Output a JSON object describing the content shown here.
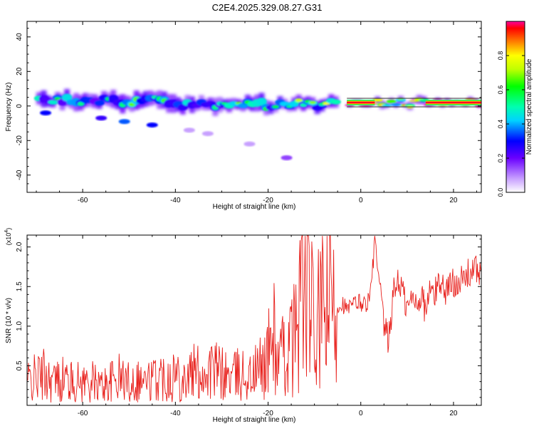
{
  "title": "C2E4.2025.329.08.27.G31",
  "chart_data": [
    {
      "type": "heatmap",
      "xlabel": "Height of straight line (km)",
      "ylabel": "Frequency (Hz)",
      "xlim": [
        -72,
        26
      ],
      "ylim": [
        -50,
        49
      ],
      "xticks": [
        -60,
        -40,
        -20,
        0,
        20
      ],
      "yticks": [
        -40,
        -20,
        0,
        20,
        40
      ],
      "colorbar": {
        "label": "Normalized spectral amplitude",
        "range": [
          0.0,
          1.0
        ],
        "ticks": [
          0.0,
          0.2,
          0.4,
          0.6,
          0.8
        ],
        "tick_labels": [
          "0.0",
          "0.2",
          "0.4",
          "0.6",
          "0.8"
        ]
      },
      "band_segments": [
        {
          "x_start": -70,
          "x_end": -62,
          "center_hz": 4,
          "width_hz": 8,
          "amplitude": 0.35
        },
        {
          "x_start": -62,
          "x_end": -40,
          "center_hz": 3,
          "width_hz": 9,
          "amplitude": 0.3
        },
        {
          "x_start": -40,
          "x_end": -20,
          "center_hz": 1,
          "width_hz": 8,
          "amplitude": 0.35
        },
        {
          "x_start": -20,
          "x_end": -5,
          "center_hz": 1,
          "width_hz": 6,
          "amplitude": 0.4
        },
        {
          "x_start": -3,
          "x_end": 3,
          "center_hz": 2,
          "width_hz": 2,
          "amplitude": 0.95
        },
        {
          "x_start": 3,
          "x_end": 14,
          "center_hz": 2,
          "width_hz": 4,
          "amplitude": 0.6
        },
        {
          "x_start": 14,
          "x_end": 26,
          "center_hz": 2,
          "width_hz": 2,
          "amplitude": 0.95
        }
      ],
      "isolated_blobs": [
        {
          "x": -68,
          "hz": -4,
          "amplitude": 0.3
        },
        {
          "x": -56,
          "hz": -7,
          "amplitude": 0.25
        },
        {
          "x": -51,
          "hz": -9,
          "amplitude": 0.35
        },
        {
          "x": -45,
          "hz": -11,
          "amplitude": 0.3
        },
        {
          "x": -37,
          "hz": -14,
          "amplitude": 0.08
        },
        {
          "x": -33,
          "hz": -16,
          "amplitude": 0.08
        },
        {
          "x": -24,
          "hz": -22,
          "amplitude": 0.08
        },
        {
          "x": -16,
          "hz": -30,
          "amplitude": 0.15
        }
      ]
    },
    {
      "type": "line",
      "xlabel": "Height of straight line (km)",
      "ylabel": "SNR (10 * v/v)",
      "y_multiplier": "(x10^4)",
      "xlim": [
        -72,
        26
      ],
      "ylim": [
        0.0,
        2.15
      ],
      "xticks": [
        -60,
        -40,
        -20,
        0,
        20
      ],
      "yticks": [
        0.5,
        1.0,
        1.5,
        2.0
      ],
      "ytick_labels": [
        "0.5",
        "1.0",
        "1.5",
        "2.0"
      ],
      "series": [
        {
          "name": "SNR",
          "color": "#e8201c",
          "x": [
            -72,
            -70,
            -68,
            -66,
            -64,
            -62,
            -60,
            -58,
            -56,
            -54,
            -52,
            -50,
            -48,
            -46,
            -44,
            -42,
            -40,
            -38,
            -36,
            -34,
            -32,
            -30,
            -28,
            -26,
            -24,
            -22,
            -20,
            -19,
            -18,
            -16,
            -14,
            -13,
            -12,
            -11,
            -10,
            -9,
            -8,
            -7,
            -6,
            -5,
            -4,
            -3,
            -2,
            -1,
            0,
            1,
            2,
            3,
            4,
            5,
            6,
            7,
            8,
            9,
            10,
            11,
            12,
            13,
            14,
            15,
            16,
            17,
            18,
            19,
            20,
            21,
            22,
            23,
            24,
            25,
            26
          ],
          "values": [
            0.3,
            0.35,
            0.4,
            0.3,
            0.35,
            0.28,
            0.3,
            0.3,
            0.25,
            0.3,
            0.35,
            0.3,
            0.33,
            0.3,
            0.35,
            0.38,
            0.4,
            0.35,
            0.42,
            0.4,
            0.45,
            0.4,
            0.35,
            0.4,
            0.35,
            0.45,
            0.6,
            1.0,
            0.55,
            0.65,
            0.9,
            1.6,
            1.4,
            1.55,
            0.7,
            1.1,
            1.2,
            1.3,
            1.2,
            1.25,
            1.3,
            1.2,
            1.25,
            1.3,
            1.3,
            1.28,
            1.35,
            2.05,
            1.5,
            1.0,
            0.8,
            1.4,
            1.6,
            1.45,
            1.2,
            1.35,
            1.3,
            1.4,
            1.2,
            1.45,
            1.4,
            1.6,
            1.45,
            1.5,
            1.55,
            1.6,
            1.55,
            1.65,
            1.7,
            1.7,
            1.72
          ]
        }
      ]
    }
  ]
}
